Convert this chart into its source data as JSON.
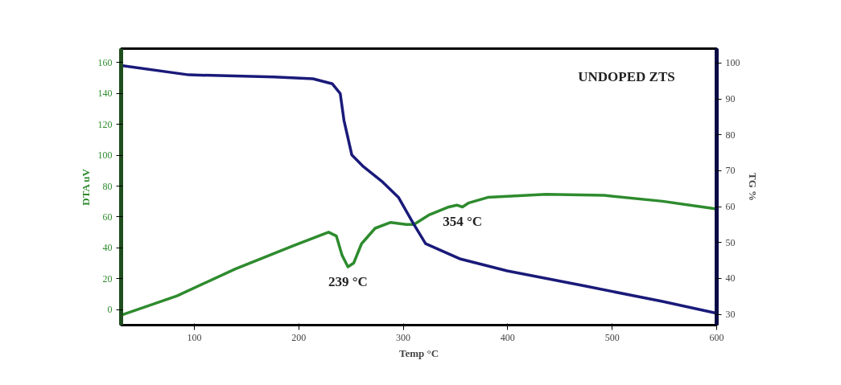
{
  "chart_data": {
    "type": "line",
    "title": "UNDOPED ZTS",
    "xlabel": "Temp °C",
    "ylabel": "DTA uV",
    "y2label": "TG %",
    "xlim": [
      30,
      600
    ],
    "xticks": [
      100,
      200,
      300,
      400,
      500,
      600
    ],
    "ylim": [
      -10,
      169
    ],
    "yticks": [
      0,
      20,
      40,
      60,
      80,
      100,
      120,
      140,
      160
    ],
    "y2lim": [
      27,
      104
    ],
    "y2ticks": [
      30,
      40,
      50,
      60,
      70,
      80,
      90,
      100
    ],
    "grid": false,
    "line_style": "solid",
    "marker": "none",
    "series": [
      {
        "color": "#2e8b2e",
        "x": [
          30,
          83.5,
          139.3,
          195.0,
          228.5,
          236.0,
          241.5,
          247.1,
          252.6,
          260.1,
          273.1,
          288.0,
          302.8,
          310.3,
          325.2,
          343.7,
          351.2,
          356.7,
          362.3,
          380.9,
          436.6,
          492.4,
          548.1,
          600
        ],
        "values": [
          -3.6,
          8.9,
          26.4,
          41.5,
          50.2,
          47.7,
          35.2,
          27.7,
          30.2,
          42.7,
          52.7,
          56.5,
          55.2,
          55.2,
          61.5,
          66.5,
          67.7,
          66.5,
          69.0,
          72.7,
          74.7,
          74.0,
          70.2,
          65.2
        ]
      },
      {
        "color": "#1a1a7a",
        "axis": "y2",
        "x": [
          30,
          94.7,
          176.5,
          213.6,
          232.2,
          239.7,
          243.3,
          250.8,
          262.0,
          280.5,
          295.4,
          310.3,
          321.4,
          354.9,
          399.5,
          473.8,
          548.1,
          600
        ],
        "values": [
          99.3,
          96.7,
          96.1,
          95.6,
          94.2,
          91.5,
          84.0,
          74.4,
          71.1,
          66.8,
          62.6,
          55.0,
          49.7,
          45.4,
          42.1,
          37.9,
          33.6,
          30.3
        ]
      }
    ],
    "annotations": [
      {
        "text": "239 °C",
        "x": 247.1,
        "y": 27.7
      },
      {
        "text": "354 °C",
        "x": 356.7,
        "y": 66.5
      }
    ]
  }
}
